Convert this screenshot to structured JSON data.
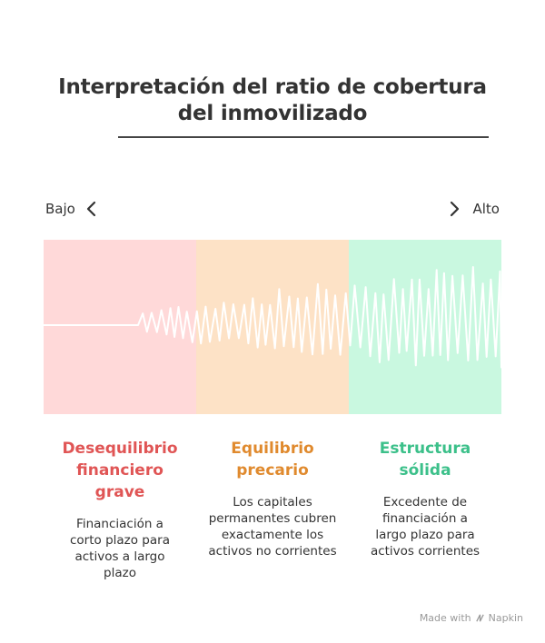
{
  "title": {
    "line1": "Interpretación del ratio de cobertura",
    "line2": "del inmovilizado"
  },
  "scale": {
    "low_label": "Bajo",
    "high_label": "Alto"
  },
  "segments": [
    {
      "title_lines": [
        "Desequilibrio",
        "financiero",
        "grave"
      ],
      "description_lines": [
        "Financiación a",
        "corto plazo para",
        "activos a largo",
        "plazo"
      ],
      "band_color": "#ffd9d9",
      "title_color": "#e05555"
    },
    {
      "title_lines": [
        "Equilibrio",
        "precario"
      ],
      "description_lines": [
        "Los capitales",
        "permanentes cubren",
        "exactamente los",
        "activos no corrientes"
      ],
      "band_color": "#fde2c6",
      "title_color": "#e08a2e"
    },
    {
      "title_lines": [
        "Estructura",
        "sólida"
      ],
      "description_lines": [
        "Excedente de",
        "financiación a",
        "largo plazo para",
        "activos corrientes"
      ],
      "band_color": "#c9f8e0",
      "title_color": "#3cc08a"
    }
  ],
  "footer": {
    "made_with": "Made with",
    "brand": "Napkin"
  },
  "colors": {
    "text": "#333333",
    "wave": "#ffffff",
    "footer": "#9a9a9a"
  }
}
